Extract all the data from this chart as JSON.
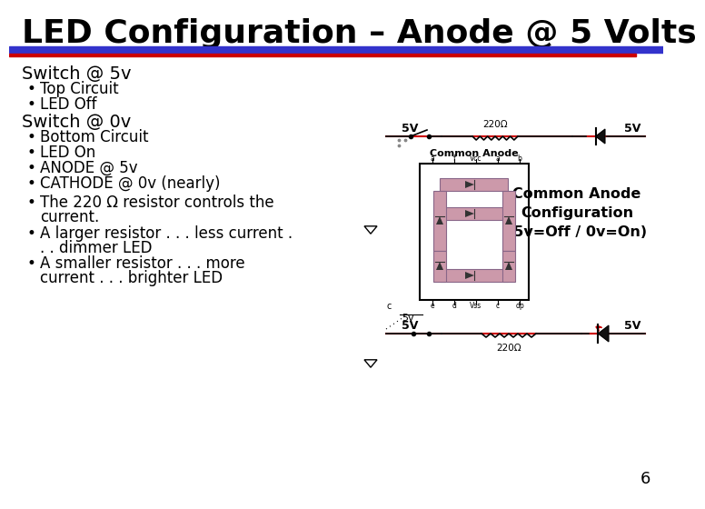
{
  "title": "LED Configuration – Anode @ 5 Volts",
  "bg_color": "#ffffff",
  "slide_number": "6",
  "bar_blue": "#3333cc",
  "bar_red": "#cc0000",
  "section1_header": "Switch @ 5v",
  "section1_bullets": [
    "Top Circuit",
    "LED Off"
  ],
  "section2_header": "Switch @ 0v",
  "section2_bullets": [
    "Bottom Circuit",
    "LED On",
    "ANODE @ 5v",
    "CATHODE @ 0v (nearly)",
    "The 220 Ω resistor controls the",
    "current.",
    "A larger resistor . . . less current .",
    ". . dimmer LED",
    "A smaller resistor . . . more",
    "current . . . brighter LED"
  ],
  "common_anode_text": "Common Anode\nConfiguration\n(5v=Off / 0v=On)",
  "resistor_label": "220Ω",
  "seg_color": "#cc99aa",
  "seg_edge": "#886688",
  "wire_red": "#cc0000",
  "wire_blue": "#3333bb",
  "wire_black": "#000000",
  "ray_color": "#cc0000",
  "title_size": 26,
  "header_size": 14,
  "bullet_size": 12,
  "annot_size": 9
}
